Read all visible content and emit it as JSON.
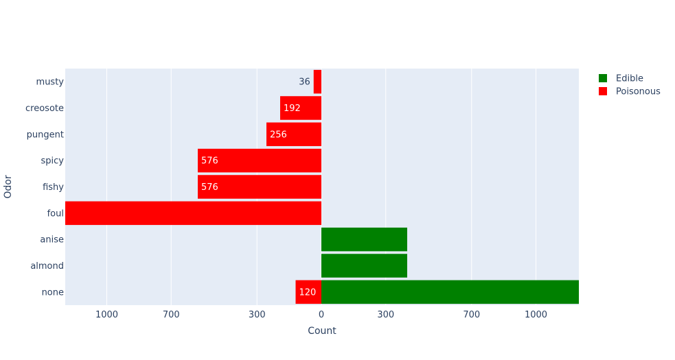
{
  "chart_data": {
    "type": "bar",
    "orientation": "horizontal",
    "layout": "population-pyramid",
    "xlabel": "Count",
    "ylabel": "Odor",
    "categories": [
      "none",
      "almond",
      "anise",
      "foul",
      "fishy",
      "spicy",
      "pungent",
      "creosote",
      "musty"
    ],
    "xtick_labels": [
      "1000",
      "700",
      "300",
      "0",
      "300",
      "700",
      "1000"
    ],
    "xtick_values": [
      -1000,
      -700,
      -300,
      0,
      300,
      700,
      1000
    ],
    "xlim": [
      -1200,
      1200
    ],
    "grid": true,
    "legend_position": "top-right",
    "series": [
      {
        "name": "Edible",
        "color": "#008000",
        "side": "right",
        "values": [
          1200,
          400,
          400,
          0,
          0,
          0,
          0,
          0,
          0
        ],
        "labels": [
          "",
          "",
          "",
          "",
          "",
          "",
          "",
          "",
          ""
        ]
      },
      {
        "name": "Poisonous",
        "color": "#ff0000",
        "side": "left",
        "values": [
          120,
          0,
          0,
          1200,
          576,
          576,
          256,
          192,
          36
        ],
        "labels": [
          "120",
          "",
          "",
          "",
          "576",
          "576",
          "256",
          "192",
          "36"
        ]
      }
    ],
    "plot_bgcolor": "#e5ecf6",
    "gridcolor": "#ffffff"
  }
}
